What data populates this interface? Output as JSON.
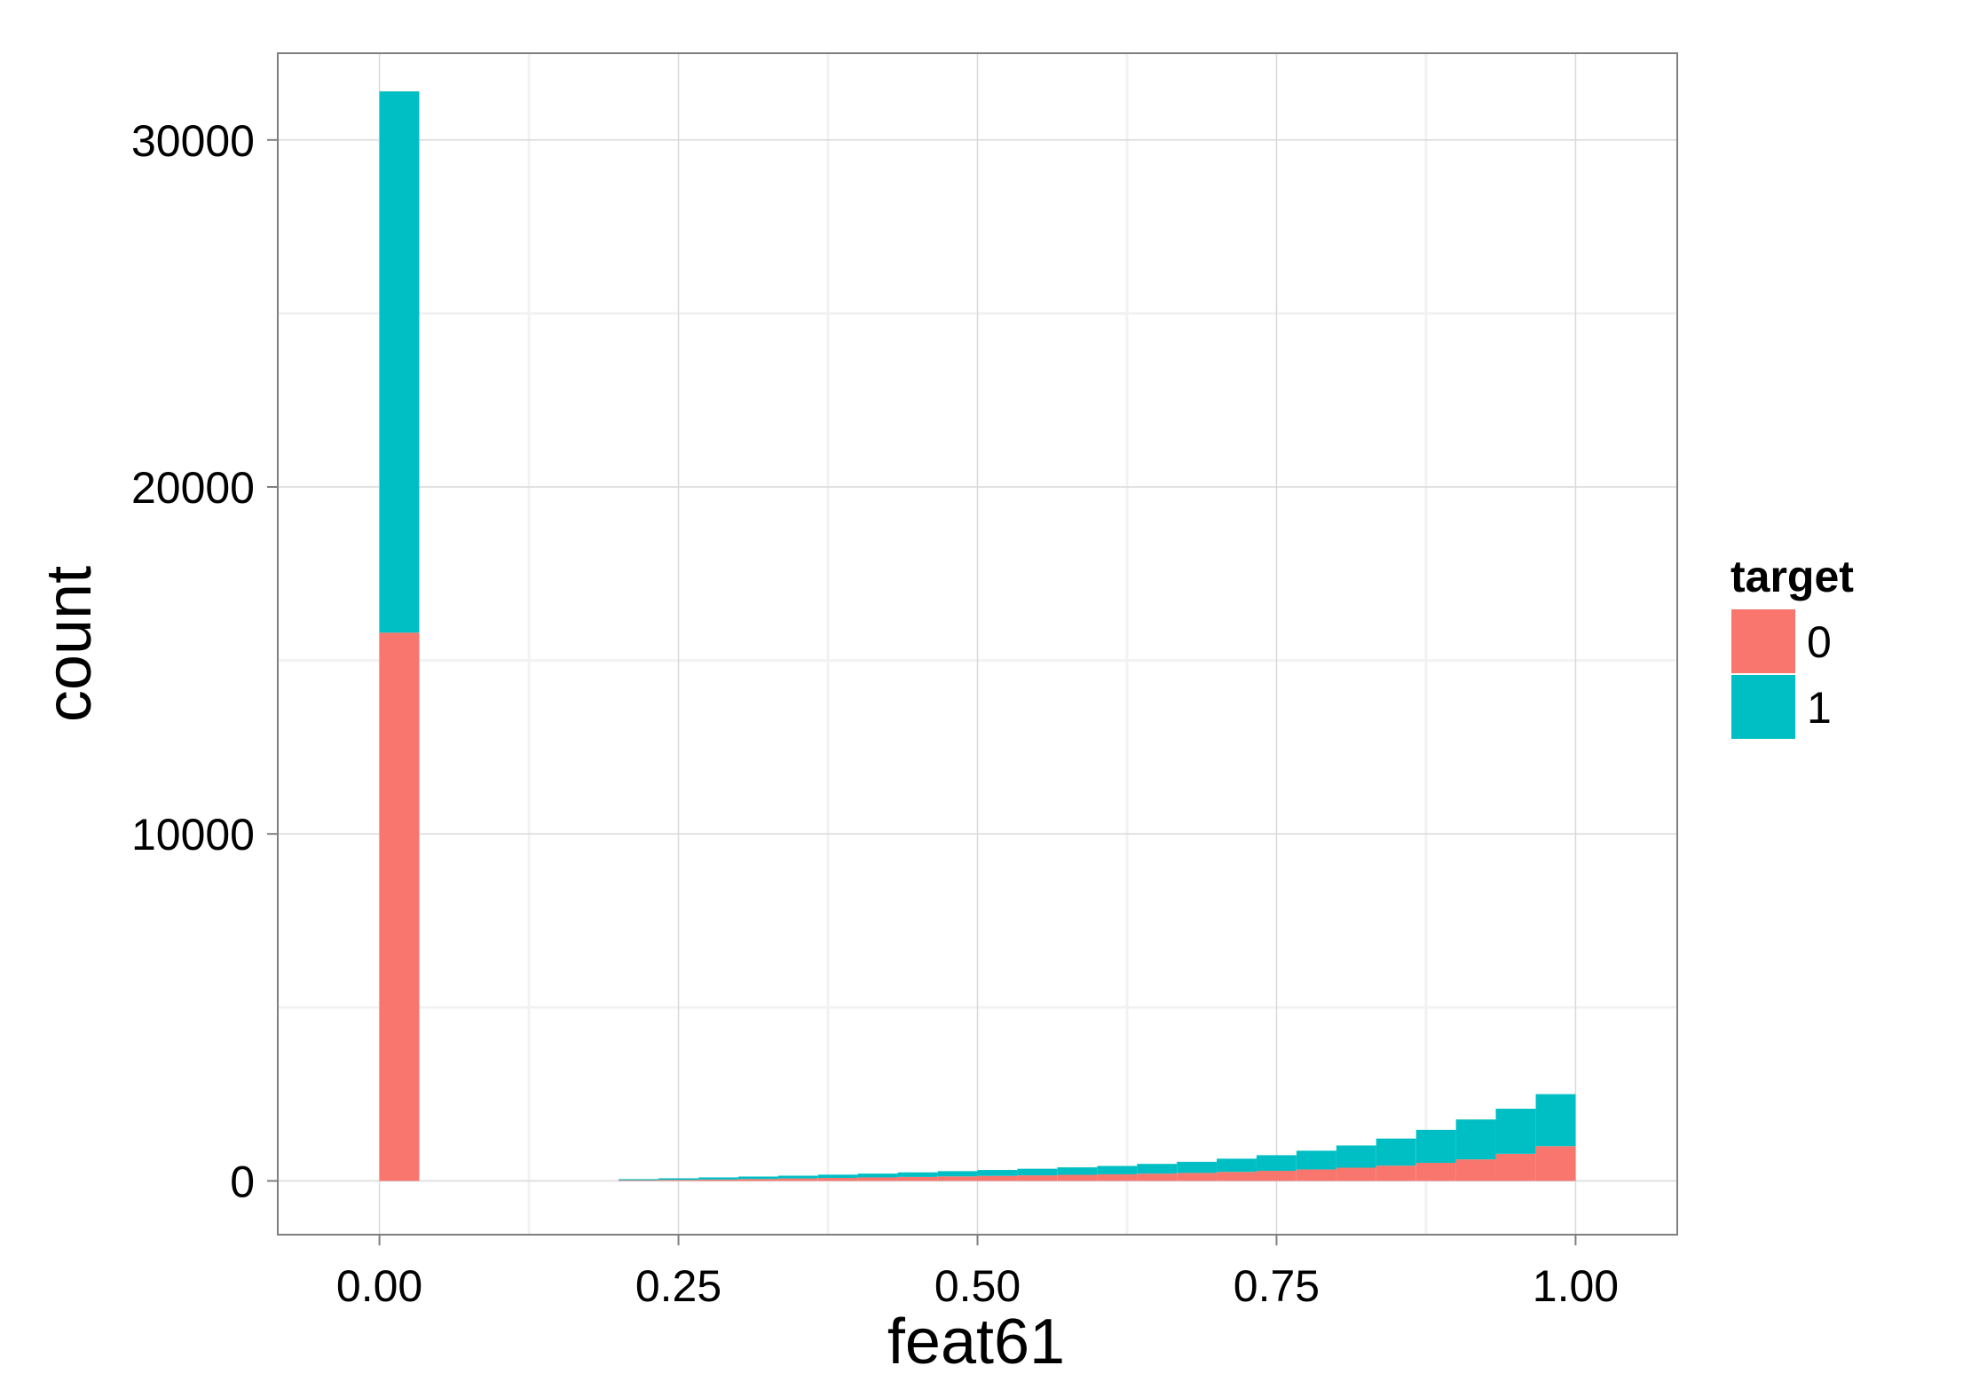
{
  "chart_data": {
    "type": "bar",
    "title": "",
    "xlabel": "feat61",
    "ylabel": "count",
    "xlim": [
      -0.085,
      1.085
    ],
    "ylim": [
      -1550,
      32500
    ],
    "xticks": [
      0,
      0.25,
      0.5,
      0.75,
      1
    ],
    "xtick_labels": [
      "0.00",
      "0.25",
      "0.50",
      "0.75",
      "1.00"
    ],
    "yticks": [
      0,
      10000,
      20000,
      30000
    ],
    "ytick_labels": [
      "0",
      "10000",
      "20000",
      "30000"
    ],
    "grid": true,
    "stacked": true,
    "bin_width": 0.0333,
    "bin_starts": [
      0.0,
      0.2,
      0.2333,
      0.2667,
      0.3,
      0.3333,
      0.3667,
      0.4,
      0.4333,
      0.4667,
      0.5,
      0.5333,
      0.5667,
      0.6,
      0.6333,
      0.6667,
      0.7,
      0.7333,
      0.7667,
      0.8,
      0.8333,
      0.8667,
      0.9,
      0.9333,
      0.9667
    ],
    "series": [
      {
        "name": "0",
        "values": [
          15800,
          20,
          30,
          40,
          55,
          70,
          85,
          100,
          115,
          130,
          145,
          160,
          175,
          190,
          210,
          230,
          260,
          290,
          330,
          380,
          440,
          520,
          620,
          780,
          1000
        ]
      },
      {
        "name": "1",
        "values": [
          15600,
          30,
          45,
          60,
          70,
          80,
          95,
          110,
          130,
          150,
          170,
          190,
          215,
          240,
          280,
          320,
          380,
          450,
          540,
          640,
          780,
          950,
          1150,
          1300,
          1500
        ]
      }
    ],
    "legend": {
      "title": "target",
      "position": "right"
    },
    "colors": {
      "0": "#F8766D",
      "1": "#00BFC4",
      "panel_bg": "#FFFFFF",
      "grid_major": "#D9D9D9",
      "grid_minor": "#F2F2F2",
      "border": "#7F7F7F"
    }
  }
}
